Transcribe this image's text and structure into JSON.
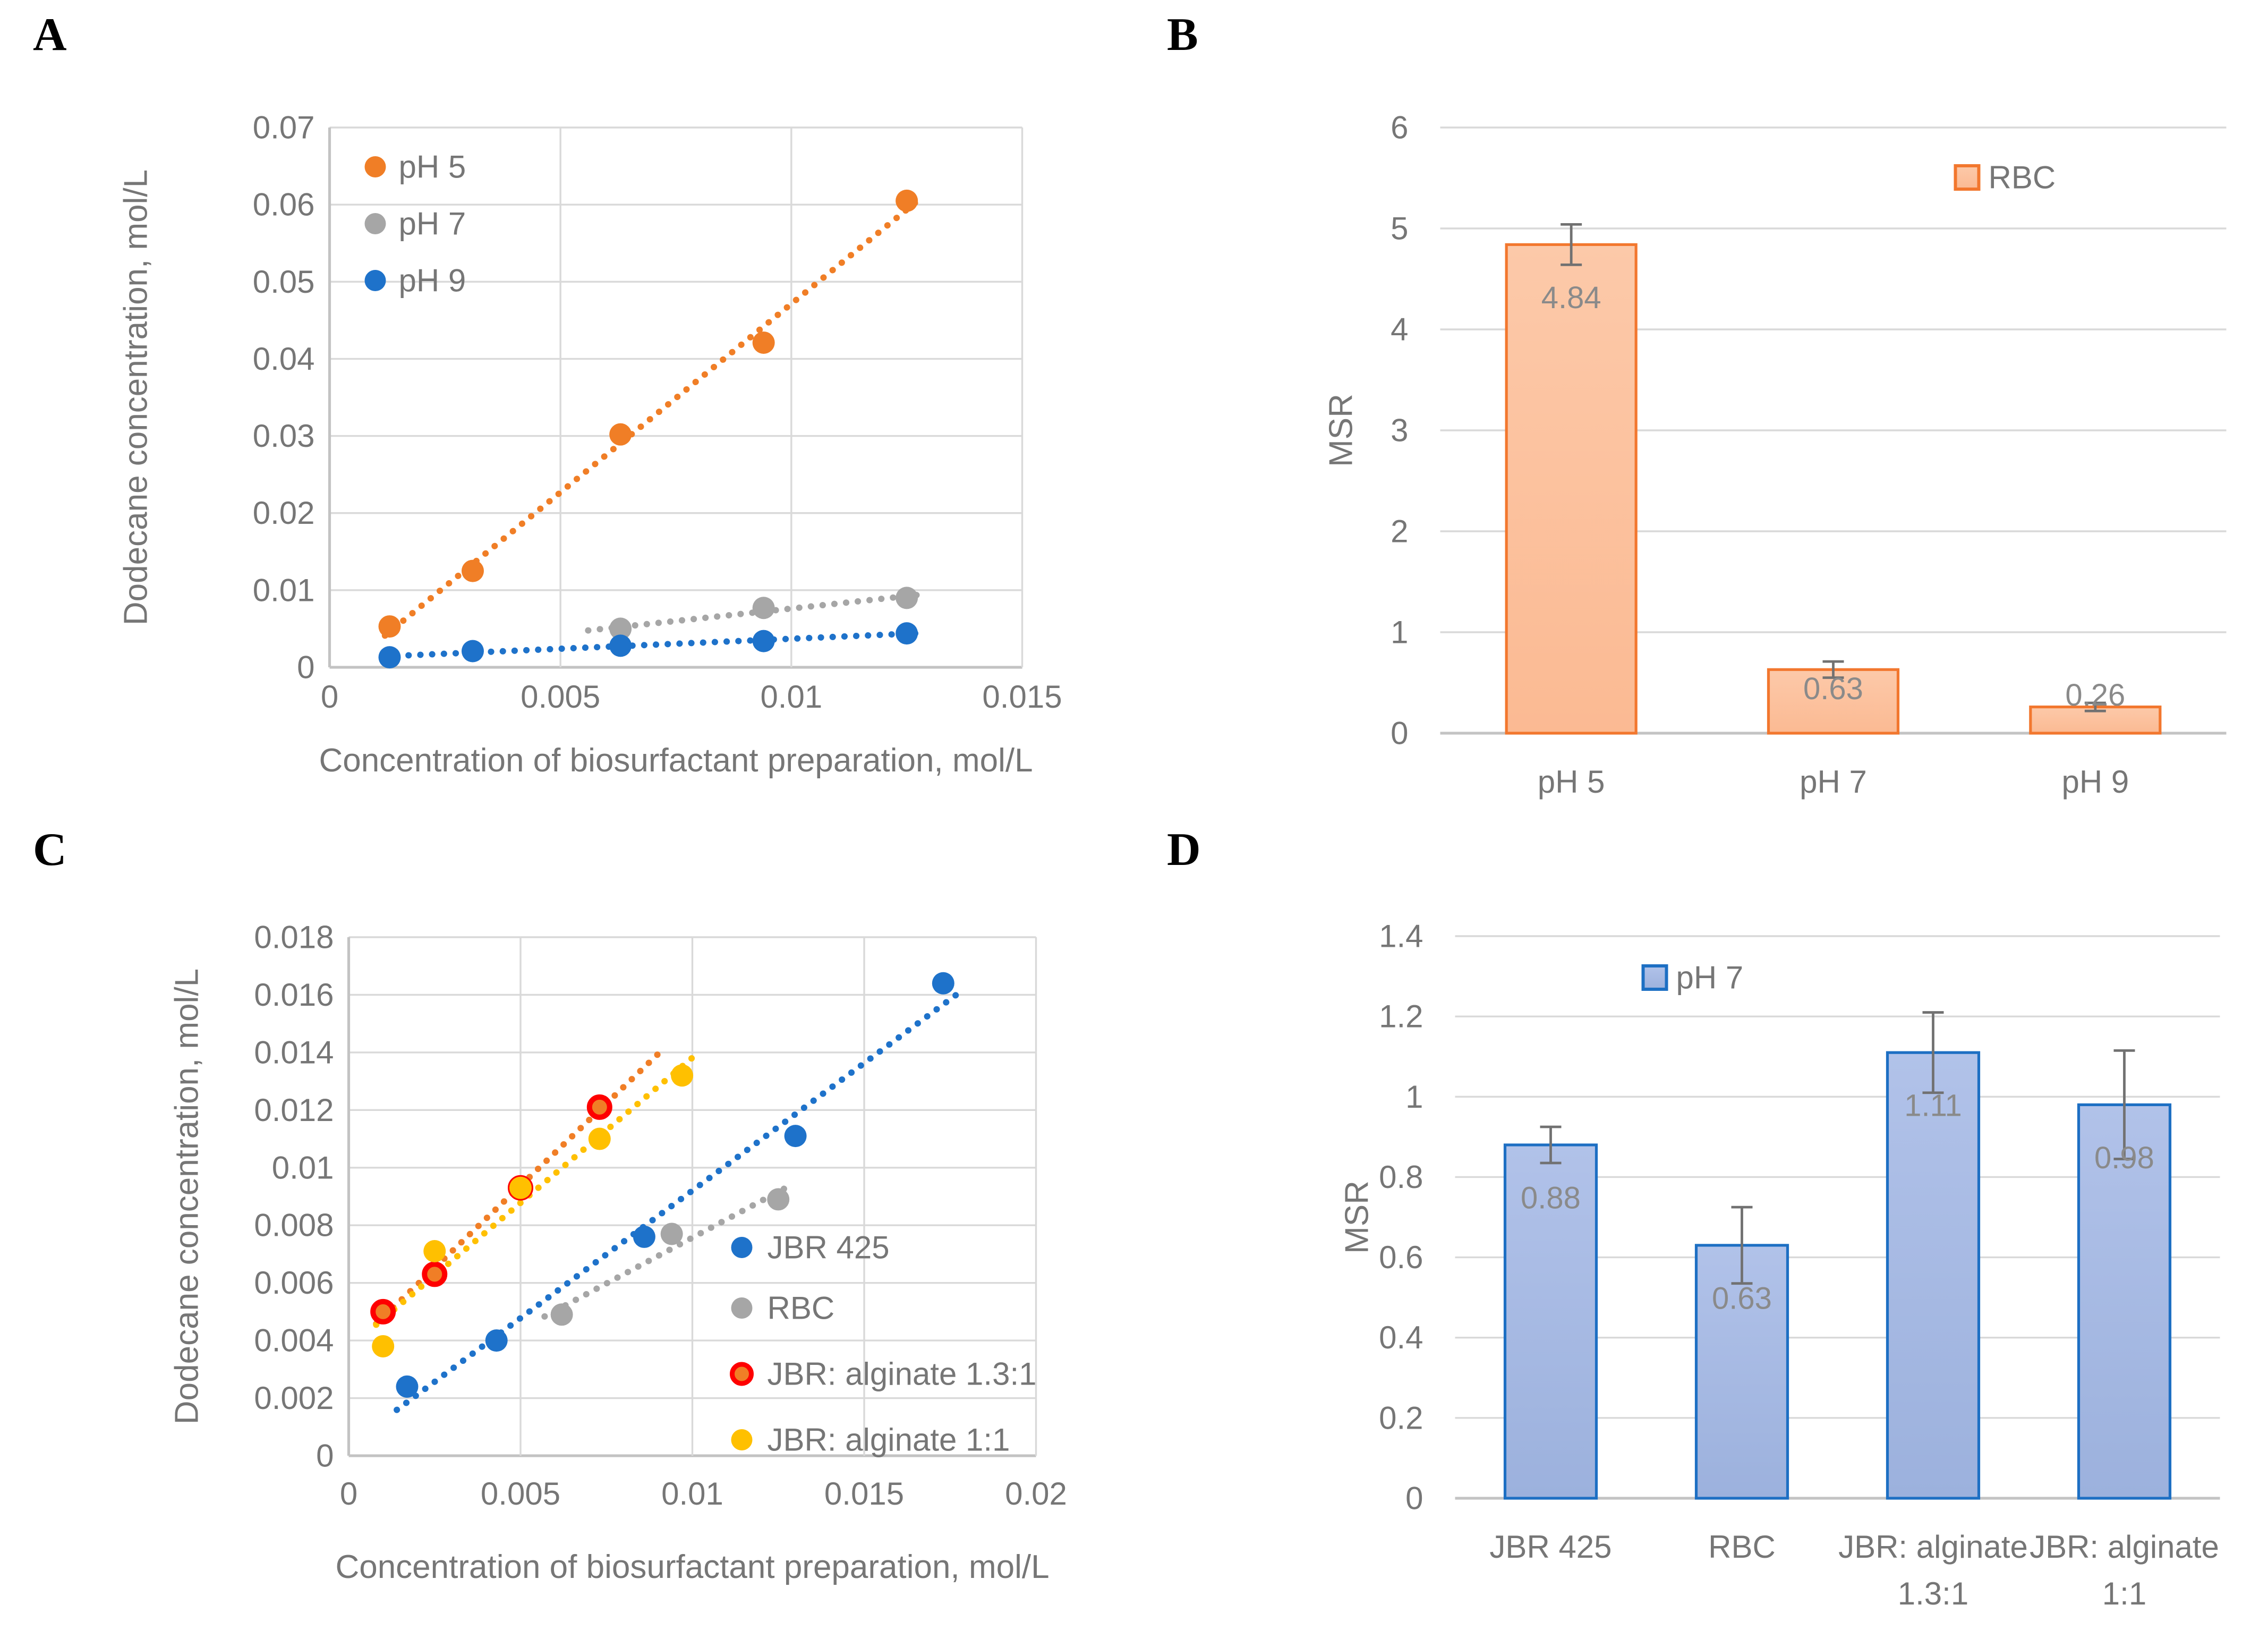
{
  "figure": {
    "panel_labels": [
      "A",
      "B",
      "C",
      "D"
    ]
  },
  "chart_data": [
    {
      "id": "A",
      "label": "A",
      "type": "scatter",
      "xlabel": "Concentration of biosurfactant preparation, mol/L",
      "ylabel": "Dodecane concentration, mol/L",
      "xlim": [
        0,
        0.015
      ],
      "ylim": [
        0,
        0.07
      ],
      "xticks": [
        0,
        0.005,
        0.01,
        0.015
      ],
      "yticks": [
        0,
        0.01,
        0.02,
        0.03,
        0.04,
        0.05,
        0.06,
        0.07
      ],
      "grid": true,
      "legend_position": "top-left-inside",
      "series": [
        {
          "name": "pH 5",
          "color": "#F07E26",
          "points": [
            [
              0.0013,
              0.0053
            ],
            [
              0.0031,
              0.0125
            ],
            [
              0.0063,
              0.0302
            ],
            [
              0.0094,
              0.0421
            ],
            [
              0.0125,
              0.0605
            ]
          ],
          "trend": [
            0.0012,
            0.0127
          ]
        },
        {
          "name": "pH 7",
          "color": "#A6A6A6",
          "points": [
            [
              0.0063,
              0.005
            ],
            [
              0.0094,
              0.0077
            ],
            [
              0.0125,
              0.009
            ]
          ],
          "trend": [
            0.0056,
            0.0128
          ]
        },
        {
          "name": "pH 9",
          "color": "#1E72CA",
          "points": [
            [
              0.0013,
              0.0013
            ],
            [
              0.0031,
              0.0021
            ],
            [
              0.0063,
              0.0028
            ],
            [
              0.0094,
              0.0034
            ],
            [
              0.0125,
              0.0044
            ]
          ],
          "trend": [
            0.0012,
            0.0128
          ]
        }
      ]
    },
    {
      "id": "B",
      "label": "B",
      "type": "bar",
      "ylabel": "MSR",
      "ylim": [
        0,
        6
      ],
      "yticks": [
        0,
        1,
        2,
        3,
        4,
        5,
        6
      ],
      "legend": "RBC",
      "bar_fill_top": "#FCC9A9",
      "bar_fill_bottom": "#FBB democratic A93",
      "bar_border": "#F2772E",
      "categories": [
        [
          "pH 5"
        ],
        [
          "pH 7"
        ],
        [
          "pH 9"
        ]
      ],
      "values": [
        4.84,
        0.63,
        0.26
      ],
      "labels": [
        "4.84",
        "0.63",
        "0.26"
      ],
      "errors": [
        0.2,
        0.08,
        0.04
      ]
    },
    {
      "id": "C",
      "label": "C",
      "type": "scatter",
      "xlabel": "Concentration of biosurfactant preparation, mol/L",
      "ylabel": "Dodecane concentration, mol/L",
      "xlim": [
        0,
        0.02
      ],
      "ylim": [
        0,
        0.018
      ],
      "xticks": [
        0,
        0.005,
        0.01,
        0.015,
        0.02
      ],
      "yticks": [
        0,
        0.002,
        0.004,
        0.006,
        0.008,
        0.01,
        0.012,
        0.014,
        0.016,
        0.018
      ],
      "grid": true,
      "legend_position": "right-middle-inside",
      "series": [
        {
          "name": "JBR 425",
          "color": "#1E72CA",
          "points": [
            [
              0.0017,
              0.0024
            ],
            [
              0.0043,
              0.004
            ],
            [
              0.0086,
              0.0076
            ],
            [
              0.013,
              0.0111
            ],
            [
              0.0173,
              0.0164
            ]
          ],
          "trend": [
            0.0014,
            0.0179
          ]
        },
        {
          "name": "RBC",
          "color": "#A6A6A6",
          "points": [
            [
              0.0062,
              0.0049
            ],
            [
              0.0094,
              0.0077
            ],
            [
              0.0125,
              0.0089
            ]
          ],
          "trend": [
            0.0057,
            0.0128
          ]
        },
        {
          "name": "JBR: alginate 1.3:1",
          "color": "#F07E26",
          "ring": "#FE0000",
          "points": [
            [
              0.001,
              0.005
            ],
            [
              0.0025,
              0.0063
            ],
            [
              0.005,
              0.0093
            ],
            [
              0.0073,
              0.0121
            ]
          ],
          "trend": [
            0.0008,
            0.0091
          ]
        },
        {
          "name": "JBR: alginate 1:1",
          "color": "#FFC000",
          "points": [
            [
              0.001,
              0.0038
            ],
            [
              0.0025,
              0.0071
            ],
            [
              0.005,
              0.0093
            ],
            [
              0.0073,
              0.011
            ],
            [
              0.0097,
              0.0132
            ]
          ],
          "trend": [
            0.0008,
            0.01
          ]
        }
      ]
    },
    {
      "id": "D",
      "label": "D",
      "type": "bar",
      "ylabel": "MSR",
      "ylim": [
        0,
        1.4
      ],
      "yticks": [
        0,
        0.2,
        0.4,
        0.6,
        0.8,
        1,
        1.2,
        1.4
      ],
      "legend": "pH 7",
      "bar_fill_top": "#B1C2E9",
      "bar_fill_bottom": "#9CB1DD",
      "bar_border": "#1D6FC3",
      "categories": [
        [
          "JBR 425"
        ],
        [
          "RBC"
        ],
        [
          "JBR: alginate",
          "1.3:1"
        ],
        [
          "JBR: alginate",
          "1:1"
        ]
      ],
      "values": [
        0.88,
        0.63,
        1.11,
        0.98
      ],
      "labels": [
        "0.88",
        "0.63",
        "1.11",
        "0.98"
      ],
      "errors": [
        0.045,
        0.095,
        0.1,
        0.135
      ]
    }
  ],
  "style": {
    "grid_color": "#D9D9D9",
    "axis_color": "#C3C3C3",
    "tick_text_color": "#767676",
    "value_label_color": "#8A8A8A",
    "error_bar_color": "#717171"
  }
}
